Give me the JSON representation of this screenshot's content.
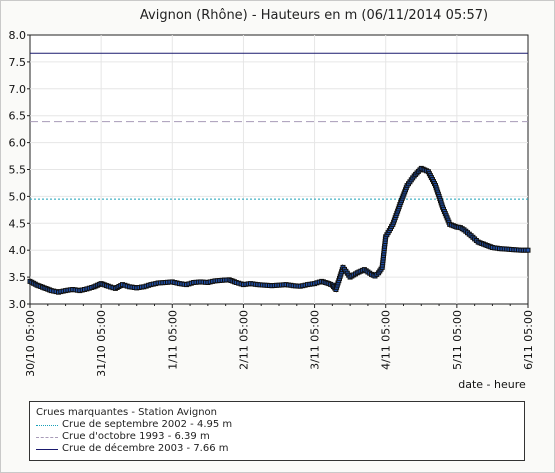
{
  "chart_data": {
    "type": "line",
    "title": "Avignon (Rhône) - Hauteurs en m (06/11/2014 05:57)",
    "xlabel": "date - heure",
    "ylabel": "",
    "ylim": [
      3.0,
      8.0
    ],
    "yticks": [
      "3.0",
      "3.5",
      "4.0",
      "4.5",
      "5.0",
      "5.5",
      "6.0",
      "6.5",
      "7.0",
      "7.5",
      "8.0"
    ],
    "xlim": [
      0,
      7
    ],
    "xtick_labels": [
      "30/10 05:00",
      "31/10 05:00",
      "1/11 05:00",
      "2/11 05:00",
      "3/11 05:00",
      "4/11 05:00",
      "5/11 05:00",
      "6/11 05:00"
    ],
    "x_unit": "days since 30/10 05:00",
    "grid": true,
    "series": [
      {
        "name": "",
        "color": "#1f4fa8",
        "marker_edge": "#111111",
        "x": [
          0.0,
          0.1,
          0.2,
          0.3,
          0.4,
          0.5,
          0.6,
          0.7,
          0.8,
          0.9,
          1.0,
          1.1,
          1.2,
          1.3,
          1.4,
          1.5,
          1.6,
          1.7,
          1.8,
          1.9,
          2.0,
          2.1,
          2.2,
          2.3,
          2.4,
          2.5,
          2.6,
          2.7,
          2.8,
          2.9,
          3.0,
          3.1,
          3.2,
          3.3,
          3.4,
          3.5,
          3.6,
          3.7,
          3.8,
          3.9,
          4.0,
          4.1,
          4.15,
          4.2,
          4.25,
          4.3,
          4.4,
          4.5,
          4.6,
          4.7,
          4.8,
          4.85,
          4.9,
          4.95,
          5.0,
          5.1,
          5.2,
          5.3,
          5.4,
          5.5,
          5.6,
          5.7,
          5.8,
          5.9,
          6.0,
          6.05,
          6.1,
          6.2,
          6.3,
          6.4,
          6.5,
          6.6,
          6.7,
          6.8,
          6.9,
          7.0
        ],
        "y": [
          3.42,
          3.35,
          3.3,
          3.25,
          3.22,
          3.25,
          3.27,
          3.25,
          3.28,
          3.32,
          3.38,
          3.33,
          3.29,
          3.36,
          3.32,
          3.3,
          3.32,
          3.36,
          3.39,
          3.4,
          3.41,
          3.38,
          3.36,
          3.4,
          3.41,
          3.4,
          3.43,
          3.44,
          3.45,
          3.4,
          3.36,
          3.38,
          3.36,
          3.35,
          3.34,
          3.35,
          3.36,
          3.34,
          3.33,
          3.36,
          3.38,
          3.42,
          3.4,
          3.38,
          3.35,
          3.27,
          3.68,
          3.5,
          3.58,
          3.64,
          3.55,
          3.52,
          3.58,
          3.68,
          4.25,
          4.48,
          4.85,
          5.2,
          5.38,
          5.52,
          5.46,
          5.2,
          4.8,
          4.48,
          4.43,
          4.42,
          4.38,
          4.27,
          4.15,
          4.1,
          4.05,
          4.03,
          4.02,
          4.01,
          4.0,
          4.0
        ]
      }
    ],
    "reference_lines": [
      {
        "label": "Crue de septembre 2002 - 4.95 m",
        "value": 4.95,
        "style": "dotted",
        "color": "#1aa0b8"
      },
      {
        "label": "Crue d'octobre 1993 - 6.39 m",
        "value": 6.39,
        "style": "dashed",
        "color": "#a89bb8"
      },
      {
        "label": "Crue de décembre 2003 - 7.66 m",
        "value": 7.66,
        "style": "solid",
        "color": "#1a1a6e"
      }
    ],
    "legend": {
      "title": "Crues marquantes - Station Avignon",
      "placement": "bottom"
    }
  }
}
